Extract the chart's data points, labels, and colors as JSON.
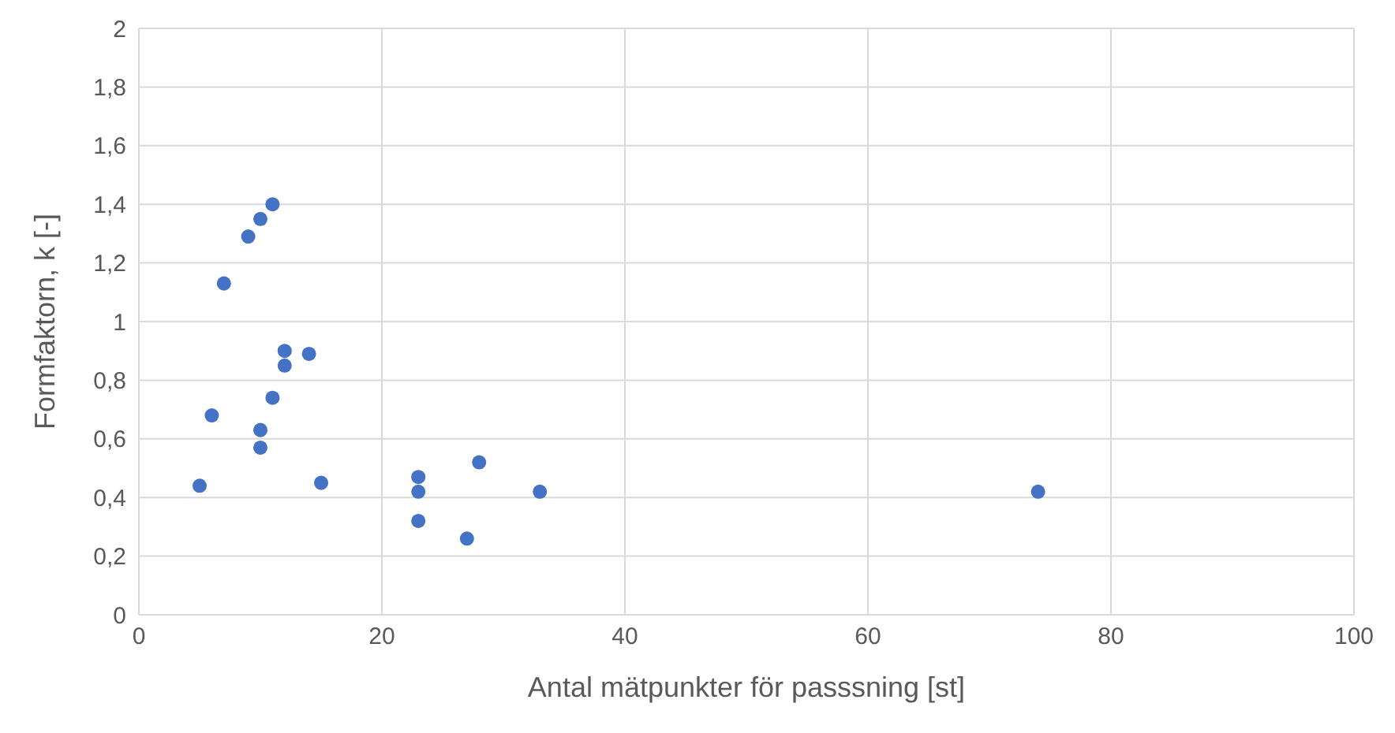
{
  "chart_data": {
    "type": "scatter",
    "xlabel": "Antal mätpunkter för passsning [st]",
    "ylabel": "Formfaktorn, k [-]",
    "x": [
      5,
      6,
      7,
      9,
      10,
      11,
      10,
      10,
      11,
      12,
      12,
      14,
      15,
      23,
      23,
      23,
      27,
      28,
      33,
      74
    ],
    "series": [
      {
        "color": "#4472c4",
        "values": [
          0.44,
          0.68,
          1.13,
          1.29,
          1.35,
          1.4,
          0.63,
          0.57,
          0.74,
          0.9,
          0.85,
          0.89,
          0.45,
          0.47,
          0.42,
          0.32,
          0.26,
          0.52,
          0.42,
          0.42
        ]
      }
    ],
    "xlim": [
      0,
      100
    ],
    "xticks": [
      0,
      20,
      40,
      60,
      80,
      100
    ],
    "ylim": [
      0,
      2
    ],
    "yticks": [
      0,
      {
        "value": 0.2,
        "label": "0,2"
      },
      {
        "value": 0.4,
        "label": "0,4"
      },
      {
        "value": 0.6,
        "label": "0,6"
      },
      {
        "value": 0.8,
        "label": "0,8"
      },
      1,
      {
        "value": 1.2,
        "label": "1,2"
      },
      {
        "value": 1.4,
        "label": "1,4"
      },
      {
        "value": 1.6,
        "label": "1,6"
      },
      {
        "value": 1.8,
        "label": "1,8"
      },
      2
    ],
    "grid": true,
    "marker": "circle"
  }
}
